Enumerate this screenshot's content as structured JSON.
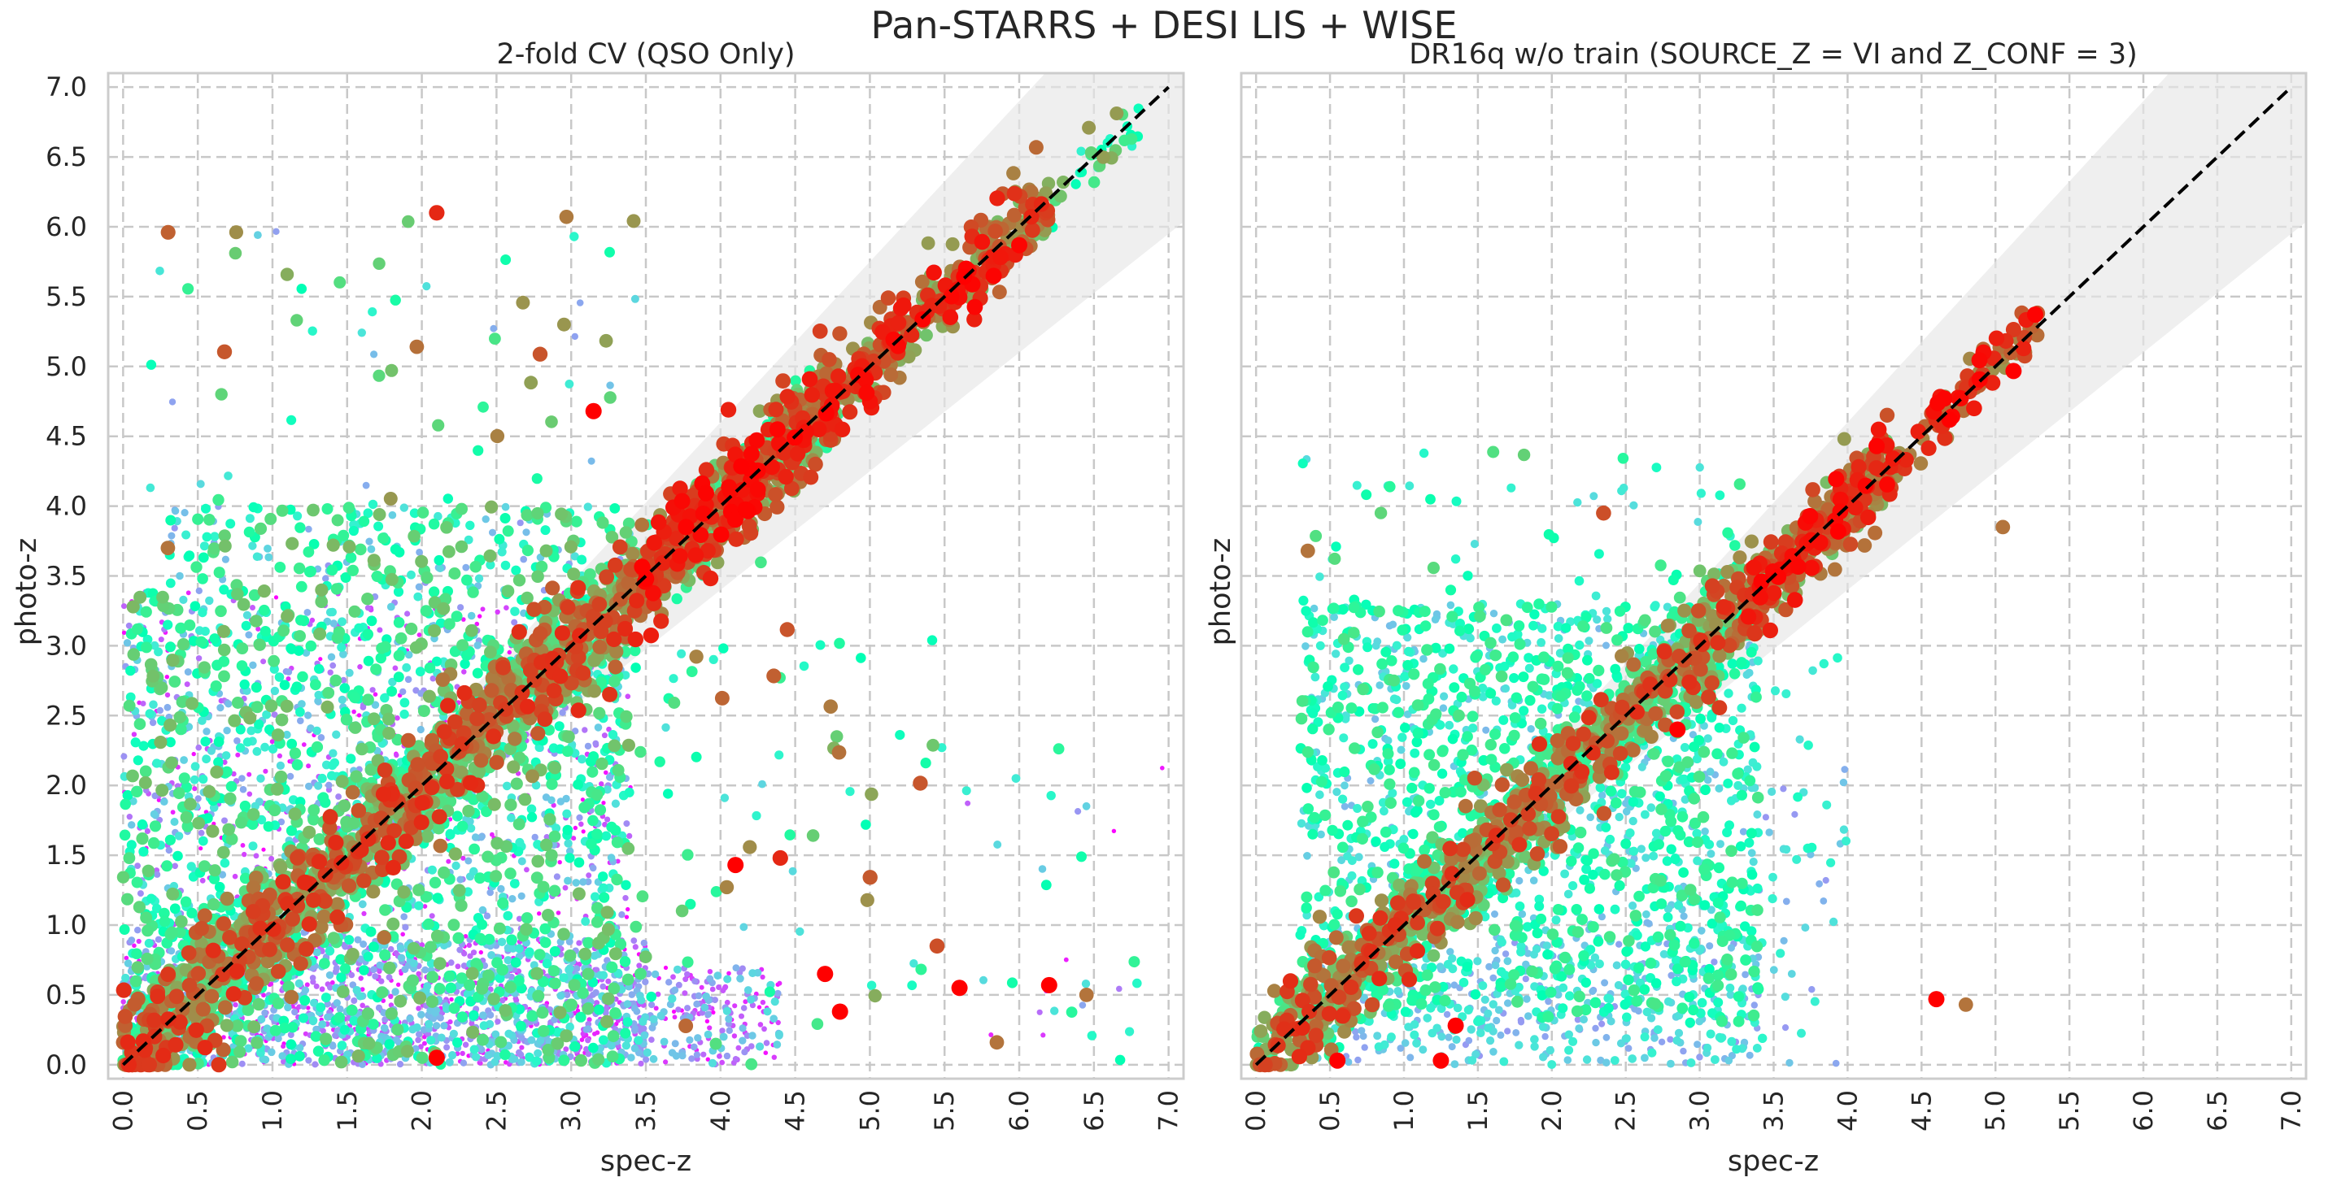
{
  "suptitle": "Pan-STARRS + DESI LIS + WISE",
  "chart_data": [
    {
      "type": "scatter",
      "title": "2-fold CV (QSO Only)",
      "xlabel": "spec-z",
      "ylabel": "photo-z",
      "xlim": [
        -0.1,
        7.1
      ],
      "ylim": [
        -0.1,
        7.1
      ],
      "xticks": [
        "0.0",
        "0.5",
        "1.0",
        "1.5",
        "2.0",
        "2.5",
        "3.0",
        "3.5",
        "4.0",
        "4.5",
        "5.0",
        "5.5",
        "6.0",
        "6.5",
        "7.0"
      ],
      "yticks": [
        "0.0",
        "0.5",
        "1.0",
        "1.5",
        "2.0",
        "2.5",
        "3.0",
        "3.5",
        "4.0",
        "4.5",
        "5.0",
        "5.5",
        "6.0",
        "6.5",
        "7.0"
      ],
      "grid": true,
      "reference_line": {
        "from": [
          0,
          0
        ],
        "to": [
          7,
          7
        ],
        "style": "dashed",
        "color": "#000000"
      },
      "tolerance_band": {
        "lower_factor": 0.85,
        "upper_factor": 1.15,
        "color": "#e6e6e6"
      },
      "colormap": "rainbow",
      "clusters": [
        {
          "x": [
            0.0,
            3.4
          ],
          "y": [
            0.0,
            3.4
          ],
          "count": 2400,
          "w": [
            0.0,
            0.75
          ]
        },
        {
          "x": [
            0.0,
            3.5
          ],
          "y": [
            0.0,
            0.9
          ],
          "count": 1200,
          "w": [
            0.0,
            0.35
          ]
        },
        {
          "x": [
            3.4,
            4.4
          ],
          "y": [
            0.0,
            0.7
          ],
          "count": 220,
          "w": [
            0.0,
            0.35
          ]
        },
        {
          "x": [
            0.3,
            3.4
          ],
          "y": [
            3.4,
            4.0
          ],
          "count": 220,
          "w": [
            0.2,
            0.75
          ]
        },
        {
          "x": [
            3.4,
            5.5
          ],
          "y": [
            0.0,
            3.2
          ],
          "count": 70,
          "w": [
            0.3,
            0.9
          ]
        },
        {
          "x": [
            5.5,
            7.0
          ],
          "y": [
            0.0,
            2.3
          ],
          "count": 30,
          "w": [
            0.0,
            0.6
          ]
        },
        {
          "x": [
            0.0,
            3.5
          ],
          "y": [
            4.0,
            6.1
          ],
          "count": 60,
          "w": [
            0.2,
            0.9
          ]
        }
      ],
      "diagonal": [
        {
          "x": [
            0.0,
            3.4
          ],
          "scatter": 0.22,
          "count": 1600,
          "w": [
            0.45,
            0.95
          ]
        },
        {
          "x": [
            3.4,
            4.8
          ],
          "scatter": 0.18,
          "count": 700,
          "w": [
            0.55,
            1.0
          ]
        },
        {
          "x": [
            4.8,
            6.2
          ],
          "scatter": 0.14,
          "count": 300,
          "w": [
            0.7,
            1.0
          ]
        },
        {
          "x": [
            6.2,
            6.8
          ],
          "scatter": 0.12,
          "count": 30,
          "w": [
            0.4,
            0.8
          ]
        }
      ],
      "highlights": [
        {
          "x": 2.1,
          "y": 6.1,
          "w": 0.95
        },
        {
          "x": 3.15,
          "y": 4.68,
          "w": 1.0
        },
        {
          "x": 5.85,
          "y": 0.16,
          "w": 0.85
        },
        {
          "x": 6.45,
          "y": 0.5,
          "w": 0.85
        },
        {
          "x": 5.6,
          "y": 0.55,
          "w": 1.0
        },
        {
          "x": 6.2,
          "y": 0.57,
          "w": 1.0
        },
        {
          "x": 4.8,
          "y": 0.38,
          "w": 1.0
        },
        {
          "x": 4.1,
          "y": 1.43,
          "w": 1.0
        },
        {
          "x": 4.4,
          "y": 1.48,
          "w": 0.95
        },
        {
          "x": 5.45,
          "y": 0.85,
          "w": 0.9
        },
        {
          "x": 4.7,
          "y": 0.65,
          "w": 1.0
        },
        {
          "x": 2.1,
          "y": 0.05,
          "w": 1.0
        },
        {
          "x": 0.3,
          "y": 3.7,
          "w": 0.85
        }
      ]
    },
    {
      "type": "scatter",
      "title": "DR16q w/o train (SOURCE_Z = VI and Z_CONF = 3)",
      "xlabel": "spec-z",
      "ylabel": "photo-z",
      "xlim": [
        -0.1,
        7.1
      ],
      "ylim": [
        -0.1,
        7.1
      ],
      "xticks": [
        "0.0",
        "0.5",
        "1.0",
        "1.5",
        "2.0",
        "2.5",
        "3.0",
        "3.5",
        "4.0",
        "4.5",
        "5.0",
        "5.5",
        "6.0",
        "6.5",
        "7.0"
      ],
      "yticks": [
        "0.0",
        "0.5",
        "1.0",
        "1.5",
        "2.0",
        "2.5",
        "3.0",
        "3.5",
        "4.0",
        "4.5",
        "5.0",
        "5.5",
        "6.0",
        "6.5",
        "7.0"
      ],
      "grid": true,
      "reference_line": {
        "from": [
          0,
          0
        ],
        "to": [
          7,
          7
        ],
        "style": "dashed",
        "color": "#000000"
      },
      "tolerance_band": {
        "lower_factor": 0.85,
        "upper_factor": 1.15,
        "color": "#e6e6e6"
      },
      "colormap": "rainbow",
      "clusters": [
        {
          "x": [
            0.3,
            3.4
          ],
          "y": [
            0.3,
            3.3
          ],
          "count": 1500,
          "w": [
            0.25,
            0.65
          ]
        },
        {
          "x": [
            0.4,
            3.4
          ],
          "y": [
            0.0,
            0.9
          ],
          "count": 400,
          "w": [
            0.2,
            0.4
          ]
        },
        {
          "x": [
            0.3,
            3.3
          ],
          "y": [
            3.2,
            4.4
          ],
          "count": 50,
          "w": [
            0.3,
            0.7
          ]
        },
        {
          "x": [
            3.3,
            4.0
          ],
          "y": [
            0.0,
            3.0
          ],
          "count": 60,
          "w": [
            0.2,
            0.45
          ]
        }
      ],
      "diagonal": [
        {
          "x": [
            0.0,
            3.3
          ],
          "scatter": 0.2,
          "count": 1200,
          "w": [
            0.45,
            0.95
          ]
        },
        {
          "x": [
            3.3,
            4.3
          ],
          "scatter": 0.15,
          "count": 350,
          "w": [
            0.7,
            1.0
          ]
        },
        {
          "x": [
            4.3,
            5.3
          ],
          "scatter": 0.1,
          "count": 80,
          "w": [
            0.8,
            1.0
          ]
        }
      ],
      "highlights": [
        {
          "x": 5.05,
          "y": 3.85,
          "w": 0.85
        },
        {
          "x": 4.6,
          "y": 0.47,
          "w": 1.0
        },
        {
          "x": 4.8,
          "y": 0.43,
          "w": 0.85
        },
        {
          "x": 0.55,
          "y": 0.03,
          "w": 1.0
        },
        {
          "x": 1.25,
          "y": 0.03,
          "w": 1.0
        },
        {
          "x": 0.35,
          "y": 3.68,
          "w": 0.85
        },
        {
          "x": 2.35,
          "y": 3.95,
          "w": 0.9
        },
        {
          "x": 2.85,
          "y": 2.4,
          "w": 1.0
        },
        {
          "x": 1.35,
          "y": 0.28,
          "w": 1.0
        }
      ]
    }
  ]
}
